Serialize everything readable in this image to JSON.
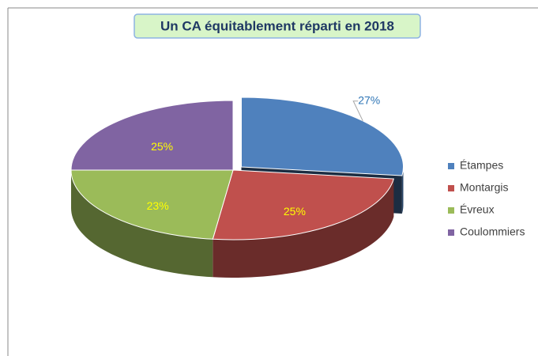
{
  "chart_data": {
    "type": "pie",
    "title": "Un CA équitablement réparti en 2018",
    "categories": [
      "Étampes",
      "Montargis",
      "Évreux",
      "Coulommiers"
    ],
    "values": [
      27,
      25,
      23,
      25
    ],
    "value_labels": [
      "27%",
      "25%",
      "23%",
      "25%"
    ],
    "colors": [
      "#4f81bd",
      "#c0504d",
      "#9bbb59",
      "#8064a2"
    ],
    "legend": "right"
  }
}
